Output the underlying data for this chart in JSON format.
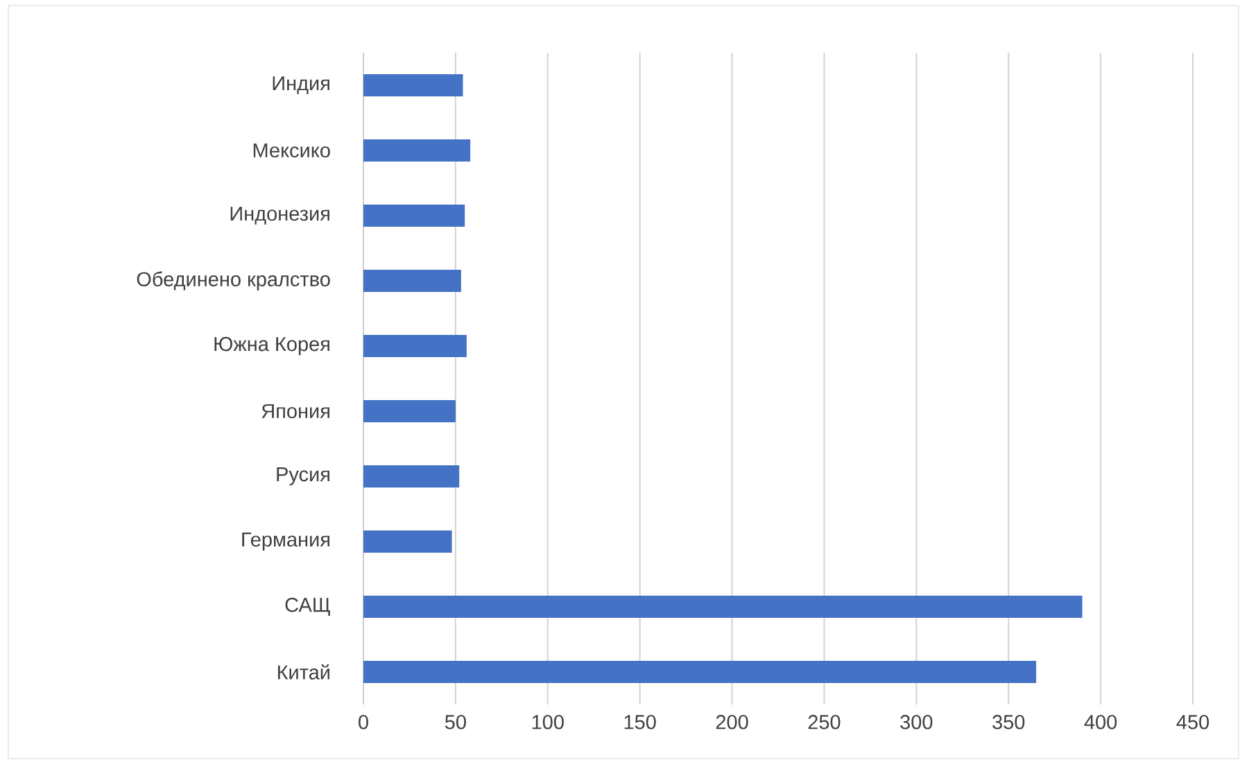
{
  "chart_data": {
    "type": "bar",
    "orientation": "horizontal",
    "categories": [
      "Индия",
      "Мексико",
      "Индонезия",
      "Обединено кралство",
      "Южна Корея",
      "Япония",
      "Русия",
      "Германия",
      "САЩ",
      "Китай"
    ],
    "values": [
      54,
      58,
      55,
      53,
      56,
      50,
      52,
      48,
      390,
      365
    ],
    "color": "#4472c4",
    "xlim": [
      0,
      450
    ],
    "xticks": [
      0,
      50,
      100,
      150,
      200,
      250,
      300,
      350,
      400,
      450
    ],
    "grid": "x"
  }
}
